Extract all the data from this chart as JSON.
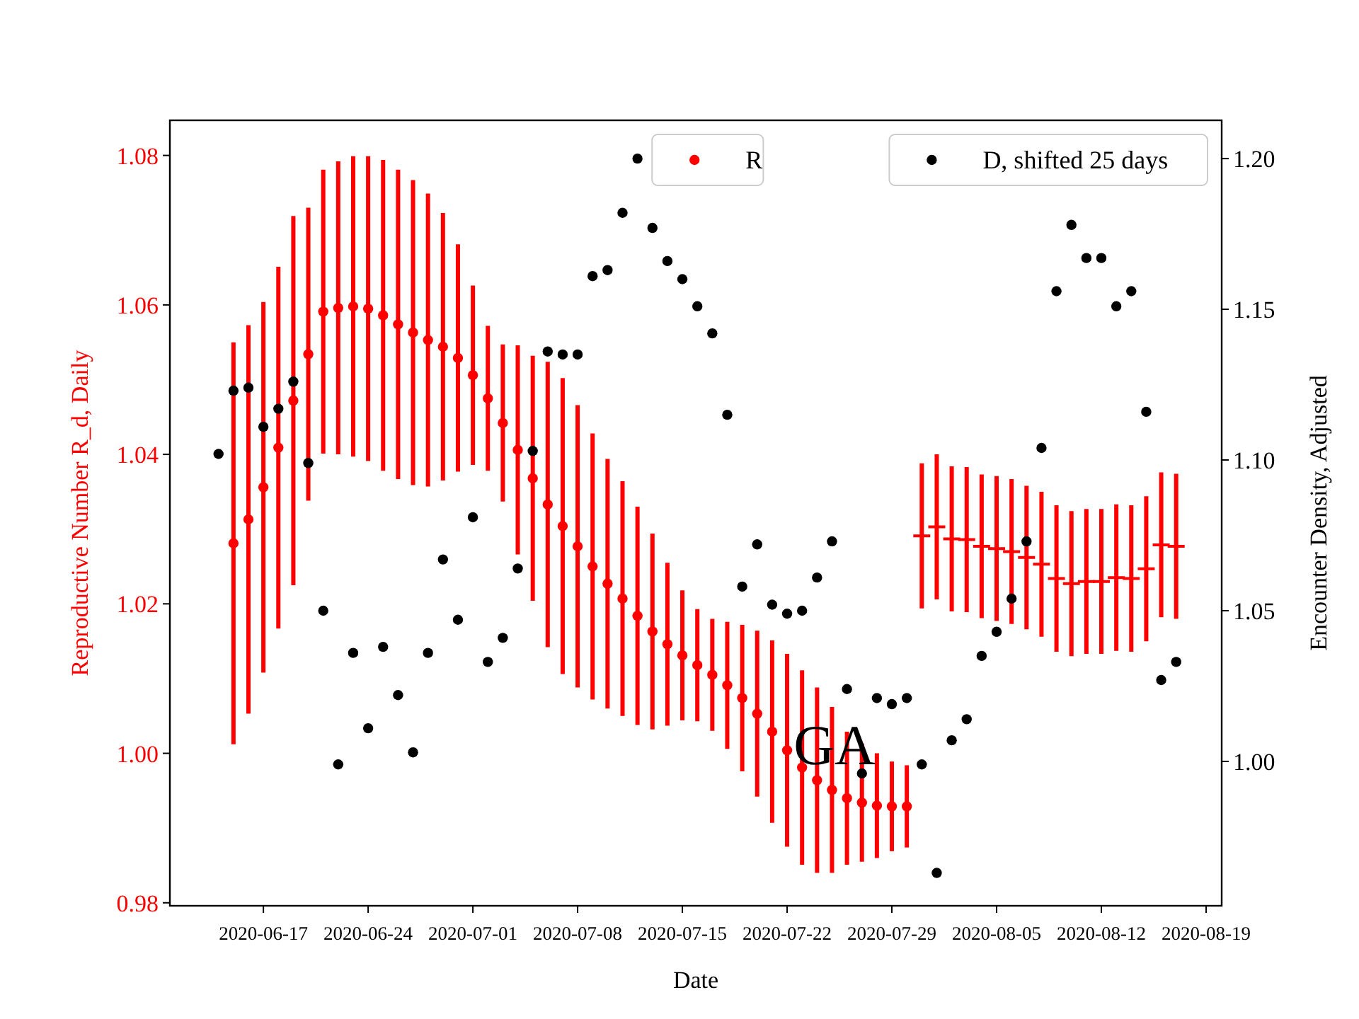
{
  "chart_data": {
    "type": "scatter",
    "xlabel": "Date",
    "ylabel": "Reproductive Number R_d, Daily",
    "y2label": "Encounter Density, Adjusted",
    "xlim": [
      "2020-06-10T18:00",
      "2020-08-20T01:00"
    ],
    "xticks": [
      "2020-06-17",
      "2020-06-24",
      "2020-07-01",
      "2020-07-08",
      "2020-07-15",
      "2020-07-22",
      "2020-07-29",
      "2020-08-05",
      "2020-08-12",
      "2020-08-19"
    ],
    "ylim": [
      0.9796,
      1.0847
    ],
    "yticks": [
      0.98,
      {
        "value": 1,
        "label": "1.00"
      },
      1.02,
      1.04,
      1.06,
      1.08
    ],
    "y2lim": [
      0.9521,
      1.2127
    ],
    "y2ticks": [
      {
        "value": 1,
        "label": "1.00"
      },
      1.05,
      {
        "value": 1.1,
        "label": "1.10"
      },
      1.15,
      {
        "value": 1.2,
        "label": "1.20"
      }
    ],
    "grid": false,
    "legend": "top right",
    "annotations": [
      "GA"
    ],
    "series": [
      {
        "name": "R",
        "color": "#ff0000",
        "marker": "circle",
        "x": [
          "2020-06-15",
          "2020-06-16",
          "2020-06-17",
          "2020-06-18",
          "2020-06-19",
          "2020-06-20",
          "2020-06-21",
          "2020-06-22",
          "2020-06-23",
          "2020-06-24",
          "2020-06-25",
          "2020-06-26",
          "2020-06-27",
          "2020-06-28",
          "2020-06-29",
          "2020-06-30",
          "2020-07-01",
          "2020-07-02",
          "2020-07-03",
          "2020-07-04",
          "2020-07-05",
          "2020-07-06",
          "2020-07-07",
          "2020-07-08",
          "2020-07-09",
          "2020-07-10",
          "2020-07-11",
          "2020-07-12",
          "2020-07-13",
          "2020-07-14",
          "2020-07-15",
          "2020-07-16",
          "2020-07-17",
          "2020-07-18",
          "2020-07-19",
          "2020-07-20",
          "2020-07-21",
          "2020-07-22",
          "2020-07-23",
          "2020-07-24",
          "2020-07-25",
          "2020-07-26",
          "2020-07-27",
          "2020-07-28",
          "2020-07-29",
          "2020-07-30"
        ],
        "values": [
          1.0281,
          1.0313,
          1.0356,
          1.0409,
          1.0472,
          1.0534,
          1.0591,
          1.0596,
          1.0598,
          1.0595,
          1.0586,
          1.0574,
          1.0563,
          1.0553,
          1.0544,
          1.0529,
          1.0506,
          1.0475,
          1.0442,
          1.0406,
          1.0368,
          1.0333,
          1.0304,
          1.0277,
          1.025,
          1.0227,
          1.0207,
          1.0184,
          1.0163,
          1.0146,
          1.0131,
          1.0118,
          1.0105,
          1.0091,
          1.0074,
          1.0053,
          1.0029,
          1.0004,
          0.9981,
          0.9964,
          0.9951,
          0.994,
          0.9934,
          0.993,
          0.9929,
          0.9929
        ],
        "errors": [
          0.0269,
          0.026,
          0.0248,
          0.0242,
          0.0247,
          0.0196,
          0.019,
          0.0196,
          0.0201,
          0.0204,
          0.0208,
          0.0207,
          0.0204,
          0.0196,
          0.0179,
          0.0152,
          0.012,
          0.0097,
          0.0105,
          0.014,
          0.0164,
          0.0191,
          0.0198,
          0.0189,
          0.0178,
          0.0167,
          0.0157,
          0.0146,
          0.0131,
          0.0109,
          0.0087,
          0.0075,
          0.0075,
          0.0085,
          0.0098,
          0.0111,
          0.0122,
          0.0129,
          0.013,
          0.0124,
          0.0111,
          0.0089,
          0.0079,
          0.007,
          0.006,
          0.0055
        ]
      },
      {
        "color": "#ff0000",
        "marker": "cross",
        "x": [
          "2020-07-31",
          "2020-08-01",
          "2020-08-02",
          "2020-08-03",
          "2020-08-04",
          "2020-08-05",
          "2020-08-06",
          "2020-08-07",
          "2020-08-08",
          "2020-08-09",
          "2020-08-10",
          "2020-08-11",
          "2020-08-12",
          "2020-08-13",
          "2020-08-14",
          "2020-08-15",
          "2020-08-16",
          "2020-08-17"
        ],
        "values": [
          1.0291,
          1.0303,
          1.0287,
          1.0286,
          1.0277,
          1.0274,
          1.027,
          1.0262,
          1.0253,
          1.0234,
          1.0227,
          1.023,
          1.023,
          1.0235,
          1.0234,
          1.0247,
          1.0279,
          1.0277
        ],
        "errors": [
          0.0097,
          0.0097,
          0.0097,
          0.0097,
          0.0096,
          0.0097,
          0.0097,
          0.0096,
          0.0097,
          0.0098,
          0.0097,
          0.0097,
          0.0097,
          0.0098,
          0.0098,
          0.0097,
          0.0097,
          0.0097
        ]
      },
      {
        "name": "D, shifted 25 days",
        "color": "#000000",
        "marker": "circle",
        "axis": "y2",
        "x": [
          "2020-06-14",
          "2020-06-15",
          "2020-06-16",
          "2020-06-17",
          "2020-06-18",
          "2020-06-19",
          "2020-06-20",
          "2020-06-21",
          "2020-06-22",
          "2020-06-23",
          "2020-06-24",
          "2020-06-25",
          "2020-06-26",
          "2020-06-27",
          "2020-06-28",
          "2020-06-29",
          "2020-06-30",
          "2020-07-01",
          "2020-07-02",
          "2020-07-03",
          "2020-07-04",
          "2020-07-05",
          "2020-07-06",
          "2020-07-07",
          "2020-07-08",
          "2020-07-09",
          "2020-07-10",
          "2020-07-11",
          "2020-07-12",
          "2020-07-13",
          "2020-07-14",
          "2020-07-15",
          "2020-07-16",
          "2020-07-17",
          "2020-07-18",
          "2020-07-19",
          "2020-07-20",
          "2020-07-21",
          "2020-07-22",
          "2020-07-23",
          "2020-07-24",
          "2020-07-25",
          "2020-07-26",
          "2020-07-27",
          "2020-07-28",
          "2020-07-29",
          "2020-07-30",
          "2020-07-31",
          "2020-08-01",
          "2020-08-02",
          "2020-08-03",
          "2020-08-04",
          "2020-08-05",
          "2020-08-06",
          "2020-08-07",
          "2020-08-08",
          "2020-08-09",
          "2020-08-10",
          "2020-08-11",
          "2020-08-12",
          "2020-08-13",
          "2020-08-14",
          "2020-08-15",
          "2020-08-16",
          "2020-08-17"
        ],
        "values": [
          1.102,
          1.123,
          1.124,
          1.111,
          1.117,
          1.126,
          1.099,
          1.05,
          0.999,
          1.036,
          1.011,
          1.038,
          1.022,
          1.003,
          1.036,
          1.067,
          1.047,
          1.081,
          1.033,
          1.041,
          1.064,
          1.103,
          1.136,
          1.135,
          1.135,
          1.161,
          1.163,
          1.182,
          1.2,
          1.177,
          1.166,
          1.16,
          1.151,
          1.142,
          1.115,
          1.058,
          1.072,
          1.052,
          1.049,
          1.05,
          1.061,
          1.073,
          1.024,
          0.996,
          1.021,
          1.019,
          1.021,
          0.999,
          0.963,
          1.007,
          1.014,
          1.035,
          1.043,
          1.054,
          1.073,
          1.104,
          1.156,
          1.178,
          1.167,
          1.167,
          1.151,
          1.156,
          1.116,
          1.027,
          1.033
        ]
      }
    ]
  }
}
